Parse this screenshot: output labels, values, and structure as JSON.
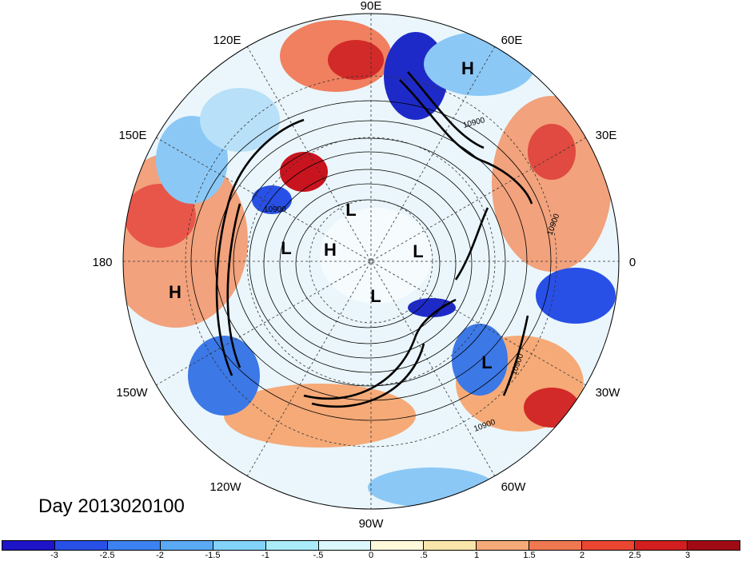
{
  "map": {
    "title": "Day 2013020100",
    "projection": "north polar stereographic",
    "longitude_labels": {
      "lon_90E": "90E",
      "lon_60E": "60E",
      "lon_30E": "30E",
      "lon_0": "0",
      "lon_30W": "30W",
      "lon_60W": "60W",
      "lon_90W": "90W",
      "lon_120W": "120W",
      "lon_150W": "150W",
      "lon_180": "180",
      "lon_150E": "150E",
      "lon_120E": "120E"
    },
    "contour_labels": [
      "10900",
      "10900",
      "10900",
      "10900",
      "10900"
    ],
    "pressure_centers": {
      "h1": "H",
      "h2": "H",
      "h3": "H",
      "l1": "L",
      "l2": "L",
      "l3": "L",
      "l4": "L",
      "l5": "L"
    },
    "anomaly_colors": {
      "strong_negative": "#1a1ad6",
      "negative": "#3c78e6",
      "weak_negative": "#8cc8f5",
      "near_zero": "#eaf6fb",
      "weak_positive": "#fbe2b4",
      "positive": "#f08060",
      "strong_positive": "#c8141e"
    }
  },
  "colorbar": {
    "segments": [
      "#1e14c8",
      "#2850e6",
      "#3c82f0",
      "#5aaaf5",
      "#82d2fa",
      "#aaebfa",
      "#dcf8fc",
      "#fffadc",
      "#fae6aa",
      "#f5aa78",
      "#f07850",
      "#eb4632",
      "#d21e1e",
      "#a00a14"
    ],
    "ticks": [
      "-3",
      "-2.5",
      "-2",
      "-1.5",
      "-1",
      "-.5",
      "0",
      ".5",
      "1",
      "1.5",
      "2",
      "2.5",
      "3"
    ]
  }
}
